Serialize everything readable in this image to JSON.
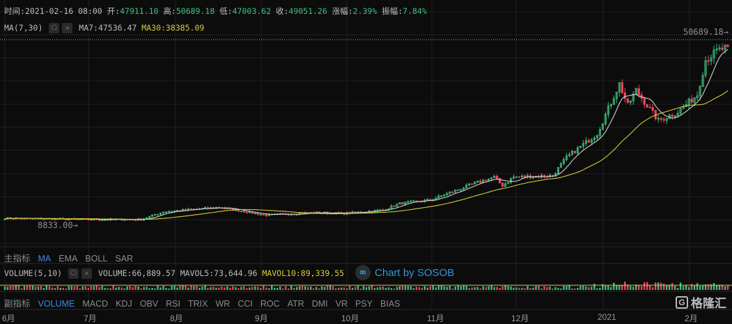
{
  "header": {
    "time_label": "时间:",
    "time": "2021-02-16 08:00",
    "open_label": "开:",
    "open": "47911.10",
    "high_label": "高:",
    "high": "50689.18",
    "low_label": "低:",
    "low": "47003.62",
    "close_label": "收:",
    "close": "49051.26",
    "change_label": "涨幅:",
    "change": "2.39%",
    "amplitude_label": "振幅:",
    "amplitude": "7.84%"
  },
  "ma_line": {
    "label": "MA(7,30)",
    "ma7": "MA7:47536.47",
    "ma30": "MA30:38385.09"
  },
  "volume_line": {
    "label": "VOLUME(5,10)",
    "volume": "VOLUME:66,889.57",
    "mavol5": "MAVOL5:73,644.96",
    "mavol10": "MAVOL10:89,339.55"
  },
  "price_high_label": "50689.18",
  "price_low_label": "8833.00",
  "main_indicator": {
    "title": "主指标",
    "tabs": [
      "MA",
      "EMA",
      "BOLL",
      "SAR"
    ],
    "active": "MA"
  },
  "sub_indicator": {
    "title": "副指标",
    "tabs": [
      "VOLUME",
      "MACD",
      "KDJ",
      "OBV",
      "RSI",
      "TRIX",
      "WR",
      "CCI",
      "ROC",
      "ATR",
      "DMI",
      "VR",
      "PSY",
      "BIAS"
    ],
    "active": "VOLUME"
  },
  "x_axis": [
    "6月",
    "7月",
    "8月",
    "9月",
    "10月",
    "11月",
    "12月",
    "2021",
    "2月"
  ],
  "watermark": "Chart by SOSOB",
  "logo": "格隆汇",
  "colors": {
    "up": "#3fbf7f",
    "down": "#f0455a",
    "ma7": "#d0d0d0",
    "ma30": "#d6cb3a",
    "active": "#3d8be0"
  },
  "chart_data": {
    "type": "candlestick",
    "price_range": [
      8833.0,
      50689.18
    ],
    "anchor_closes": [
      [
        "06-01",
        9500
      ],
      [
        "06-20",
        9300
      ],
      [
        "07-01",
        9200
      ],
      [
        "07-20",
        9200
      ],
      [
        "07-28",
        11000
      ],
      [
        "08-17",
        12000
      ],
      [
        "09-03",
        10200
      ],
      [
        "09-20",
        10800
      ],
      [
        "10-01",
        10600
      ],
      [
        "10-15",
        11400
      ],
      [
        "10-21",
        12900
      ],
      [
        "11-01",
        13700
      ],
      [
        "11-18",
        17800
      ],
      [
        "11-24",
        19000
      ],
      [
        "11-27",
        17000
      ],
      [
        "12-01",
        19000
      ],
      [
        "12-15",
        19300
      ],
      [
        "12-20",
        23500
      ],
      [
        "12-31",
        29000
      ],
      [
        "01-08",
        40500
      ],
      [
        "01-11",
        35500
      ],
      [
        "01-14",
        39000
      ],
      [
        "01-22",
        32000
      ],
      [
        "01-29",
        34000
      ],
      [
        "02-05",
        38000
      ],
      [
        "02-08",
        46000
      ],
      [
        "02-12",
        48000
      ],
      [
        "02-16",
        49051
      ]
    ]
  }
}
